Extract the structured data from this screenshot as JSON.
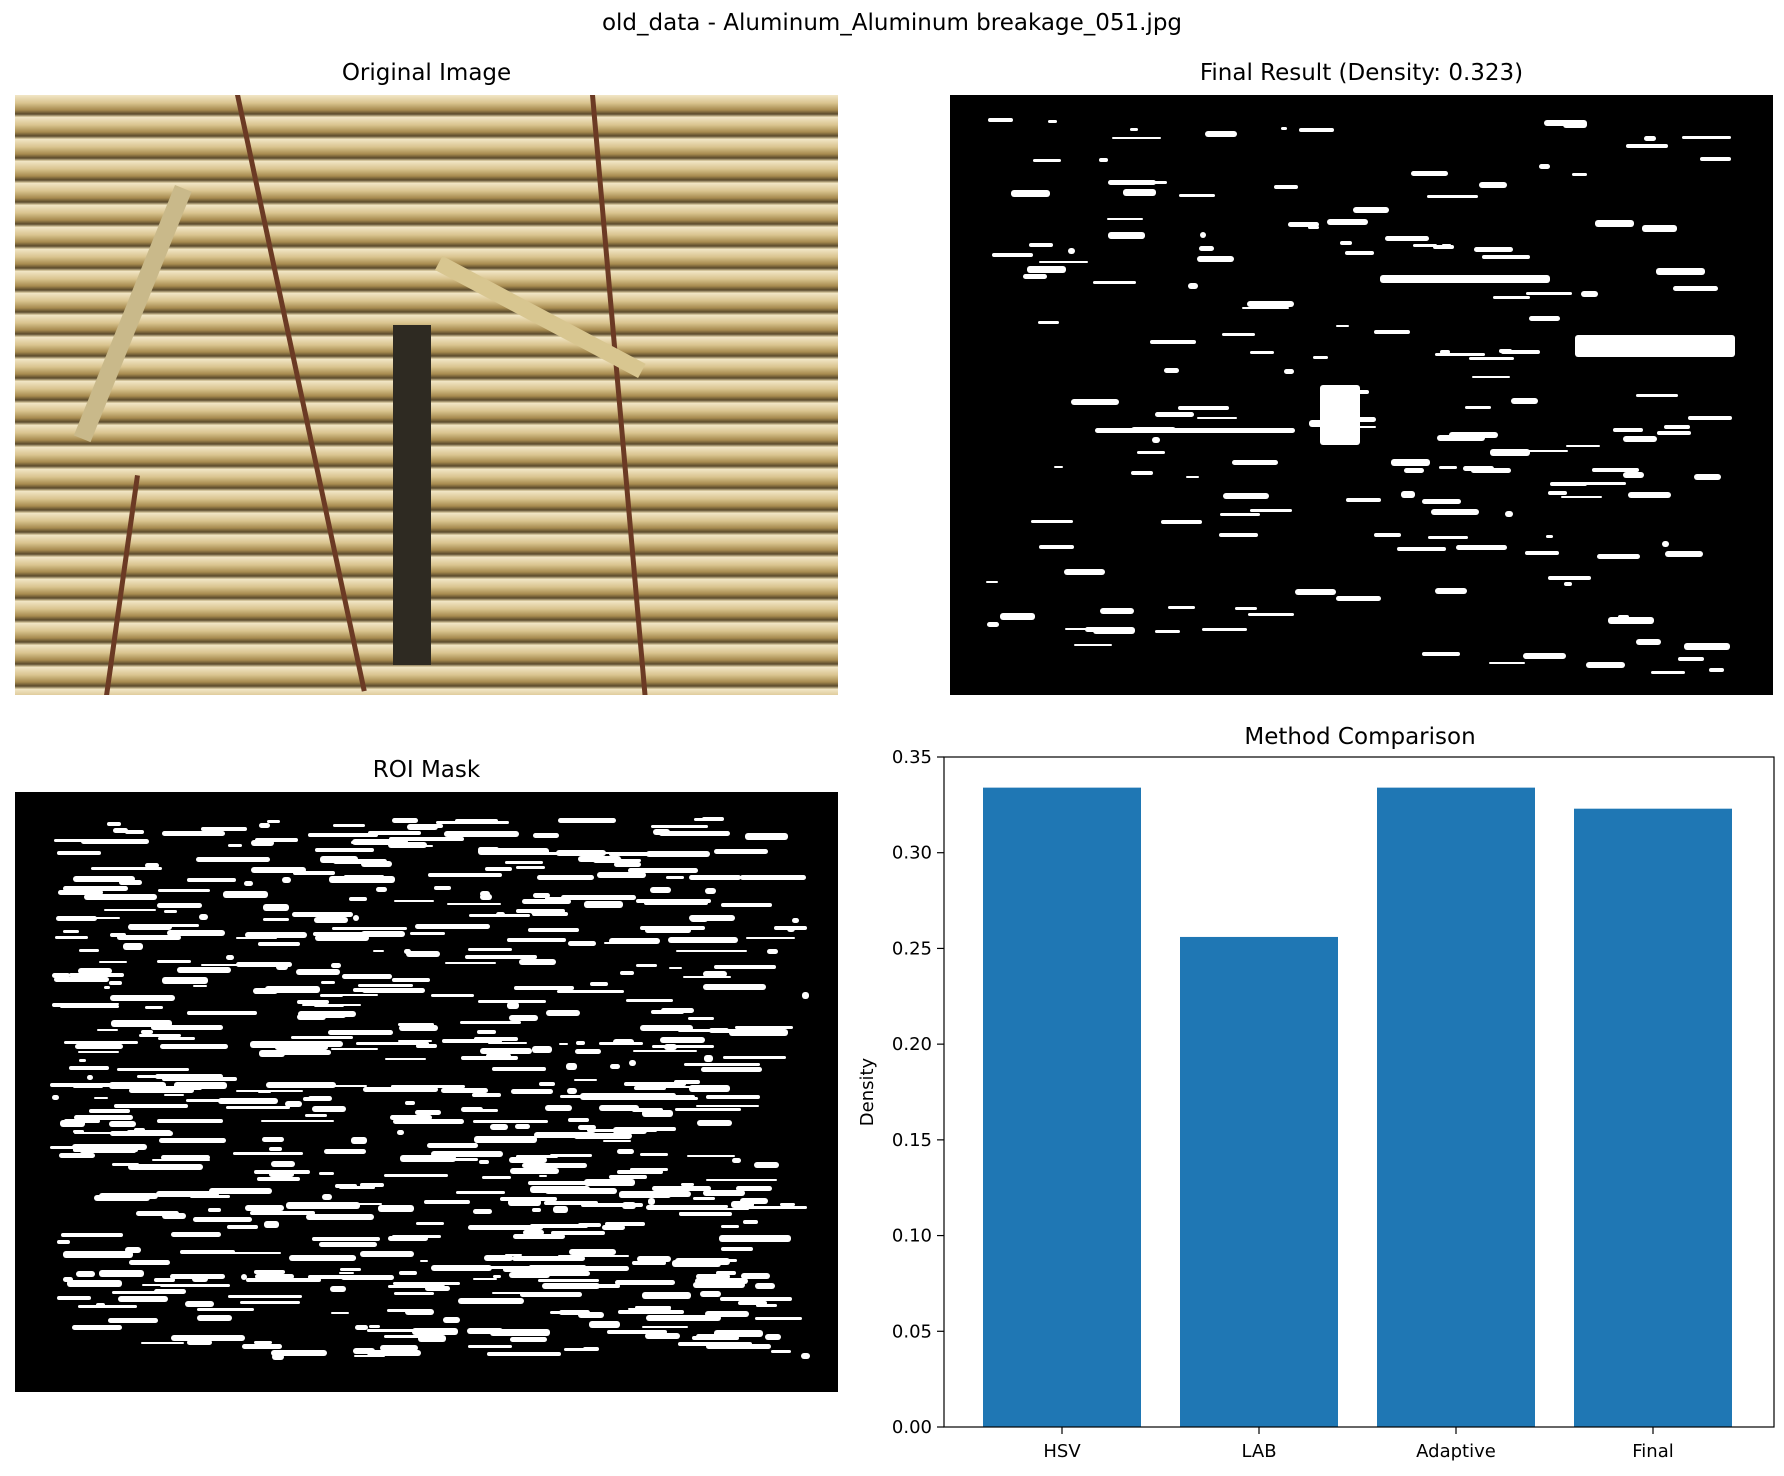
{
  "figure": {
    "suptitle": "old_data - Aluminum_Aluminum breakage_051.jpg"
  },
  "panels": {
    "original": {
      "title": "Original Image"
    },
    "final": {
      "title": "Final Result (Density: 0.323)"
    },
    "roi": {
      "title": "ROI Mask"
    }
  },
  "colors": {
    "bar": "#1f77b4",
    "mask_background": "#000000",
    "mask_foreground": "#ffffff"
  },
  "chart_data": {
    "type": "bar",
    "title": "Method Comparison",
    "xlabel": "",
    "ylabel": "Density",
    "categories": [
      "HSV",
      "LAB",
      "Adaptive",
      "Final"
    ],
    "values": [
      0.334,
      0.256,
      0.334,
      0.323
    ],
    "ylim": [
      0,
      0.35
    ],
    "yticks": [
      "0.00",
      "0.05",
      "0.10",
      "0.15",
      "0.20",
      "0.25",
      "0.30",
      "0.35"
    ],
    "grid": false,
    "legend": "none"
  }
}
